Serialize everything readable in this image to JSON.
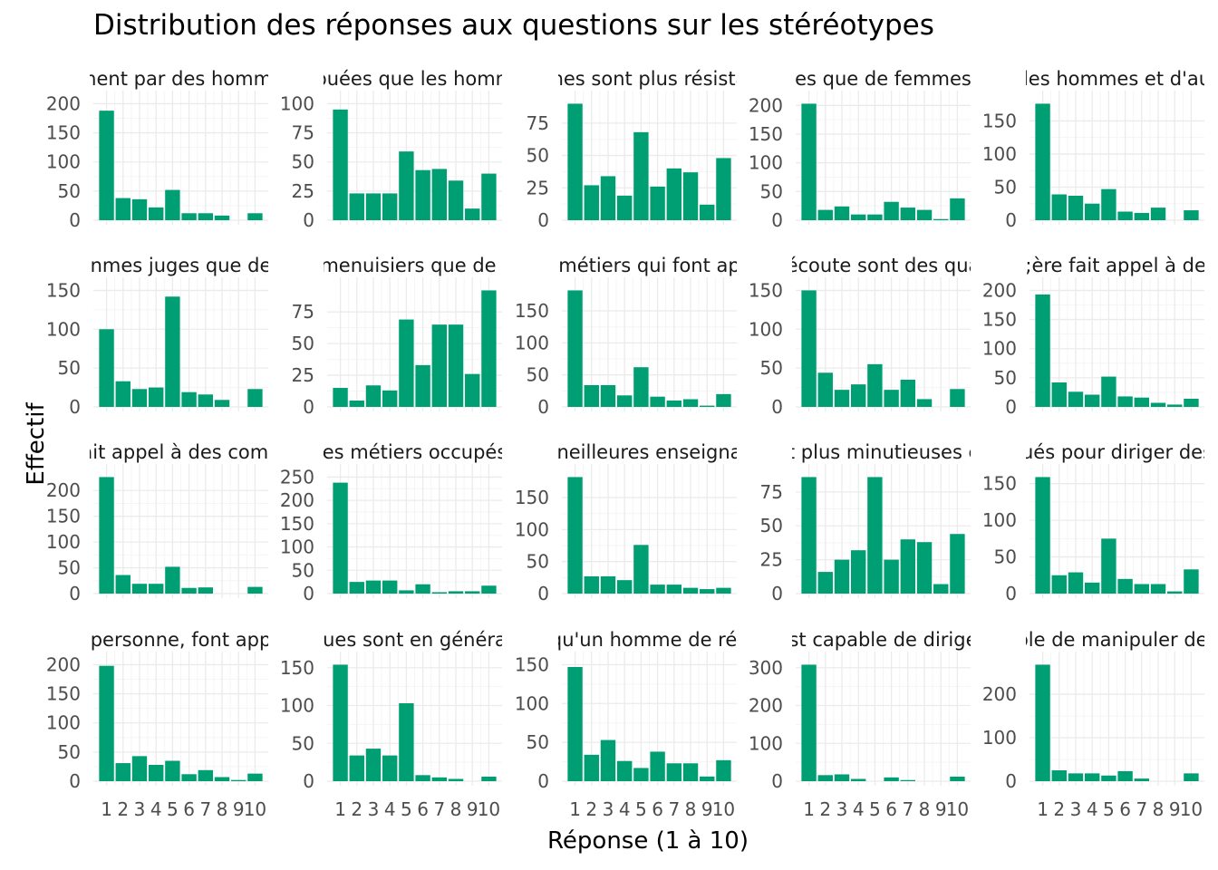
{
  "title": "Distribution des réponses aux questions sur les stéréotypes",
  "xlabel": "Réponse (1 à 10)",
  "ylabel": "Effectif",
  "colors": {
    "bar": "#009E73",
    "grid_major": "#EBEBEB",
    "grid_minor": "#F5F5F5"
  },
  "chart_data": {
    "type": "bar",
    "facets": 20,
    "layout": "4 rows x 5 columns",
    "categories": [
      "1",
      "2",
      "3",
      "4",
      "5",
      "6",
      "7",
      "8",
      "9",
      "10"
    ],
    "panels": [
      {
        "label": "ment par des homme",
        "ticks": [
          0,
          50,
          100,
          150,
          200
        ],
        "values": [
          188,
          38,
          36,
          22,
          52,
          12,
          12,
          8,
          0,
          12
        ]
      },
      {
        "label": "ouées que les homm",
        "ticks": [
          0,
          25,
          50,
          75,
          100
        ],
        "values": [
          95,
          23,
          23,
          23,
          59,
          43,
          44,
          34,
          10,
          40
        ]
      },
      {
        "label": "nes sont plus résista",
        "ticks": [
          0,
          25,
          50,
          75
        ],
        "values": [
          90,
          27,
          34,
          19,
          68,
          26,
          40,
          37,
          12,
          48
        ]
      },
      {
        "label": "es que de femmes",
        "ticks": [
          0,
          50,
          100,
          150,
          200
        ],
        "values": [
          203,
          18,
          24,
          10,
          10,
          32,
          22,
          18,
          2,
          38
        ]
      },
      {
        "label": "les hommes et d'au",
        "ticks": [
          0,
          50,
          100,
          150
        ],
        "values": [
          176,
          39,
          37,
          25,
          47,
          13,
          11,
          19,
          0,
          15
        ]
      },
      {
        "label": "nmes juges que de",
        "ticks": [
          0,
          50,
          100,
          150
        ],
        "values": [
          100,
          33,
          23,
          25,
          142,
          19,
          16,
          9,
          0,
          23
        ]
      },
      {
        "label": "menuisiers que de f",
        "ticks": [
          0,
          25,
          50,
          75
        ],
        "values": [
          15,
          5,
          17,
          13,
          69,
          33,
          65,
          65,
          26,
          92
        ]
      },
      {
        "label": "métiers qui font ap",
        "ticks": [
          0,
          50,
          100,
          150
        ],
        "values": [
          182,
          34,
          34,
          18,
          62,
          16,
          10,
          12,
          2,
          20
        ]
      },
      {
        "label": "écoute sont des qua",
        "ticks": [
          0,
          50,
          100,
          150
        ],
        "values": [
          150,
          44,
          22,
          29,
          55,
          22,
          35,
          10,
          0,
          23
        ]
      },
      {
        "label": "t;ère fait appel à des",
        "ticks": [
          0,
          50,
          100,
          150,
          200
        ],
        "values": [
          193,
          42,
          26,
          21,
          52,
          18,
          16,
          7,
          4,
          14
        ]
      },
      {
        "label": "ait appel à des comp",
        "ticks": [
          0,
          50,
          100,
          150,
          200
        ],
        "values": [
          226,
          36,
          19,
          19,
          52,
          11,
          12,
          0,
          0,
          13
        ]
      },
      {
        "label": "es métiers occupés",
        "ticks": [
          0,
          50,
          100,
          150,
          200,
          250
        ],
        "values": [
          238,
          25,
          28,
          28,
          7,
          20,
          3,
          5,
          5,
          17
        ]
      },
      {
        "label": "neilleures enseigna",
        "ticks": [
          0,
          50,
          100,
          150
        ],
        "values": [
          182,
          27,
          27,
          21,
          76,
          14,
          14,
          9,
          7,
          9
        ]
      },
      {
        "label": "t plus minutieuses c",
        "ticks": [
          0,
          25,
          50,
          75
        ],
        "values": [
          86,
          16,
          25,
          32,
          86,
          25,
          40,
          38,
          7,
          44
        ]
      },
      {
        "label": "ués pour diriger des",
        "ticks": [
          0,
          50,
          100,
          150
        ],
        "values": [
          159,
          25,
          29,
          15,
          75,
          20,
          13,
          13,
          3,
          33
        ]
      },
      {
        "label": "personne, font app",
        "ticks": [
          0,
          50,
          100,
          150,
          200
        ],
        "values": [
          198,
          31,
          43,
          28,
          35,
          12,
          19,
          7,
          2,
          13
        ]
      },
      {
        "label": "ues sont en généra",
        "ticks": [
          0,
          50,
          100,
          150
        ],
        "values": [
          154,
          34,
          43,
          34,
          103,
          8,
          5,
          3,
          0,
          6
        ]
      },
      {
        "label": "qu'un homme de réa",
        "ticks": [
          0,
          50,
          100,
          150
        ],
        "values": [
          147,
          34,
          53,
          26,
          17,
          38,
          23,
          23,
          6,
          27
        ]
      },
      {
        "label": "st capable de dirige",
        "ticks": [
          0,
          100,
          200,
          300
        ],
        "values": [
          308,
          16,
          18,
          6,
          0,
          10,
          3,
          0,
          0,
          12
        ]
      },
      {
        "label": "ble de manipuler des",
        "ticks": [
          0,
          100,
          200
        ],
        "values": [
          268,
          25,
          18,
          18,
          13,
          23,
          6,
          0,
          0,
          18
        ]
      }
    ]
  }
}
